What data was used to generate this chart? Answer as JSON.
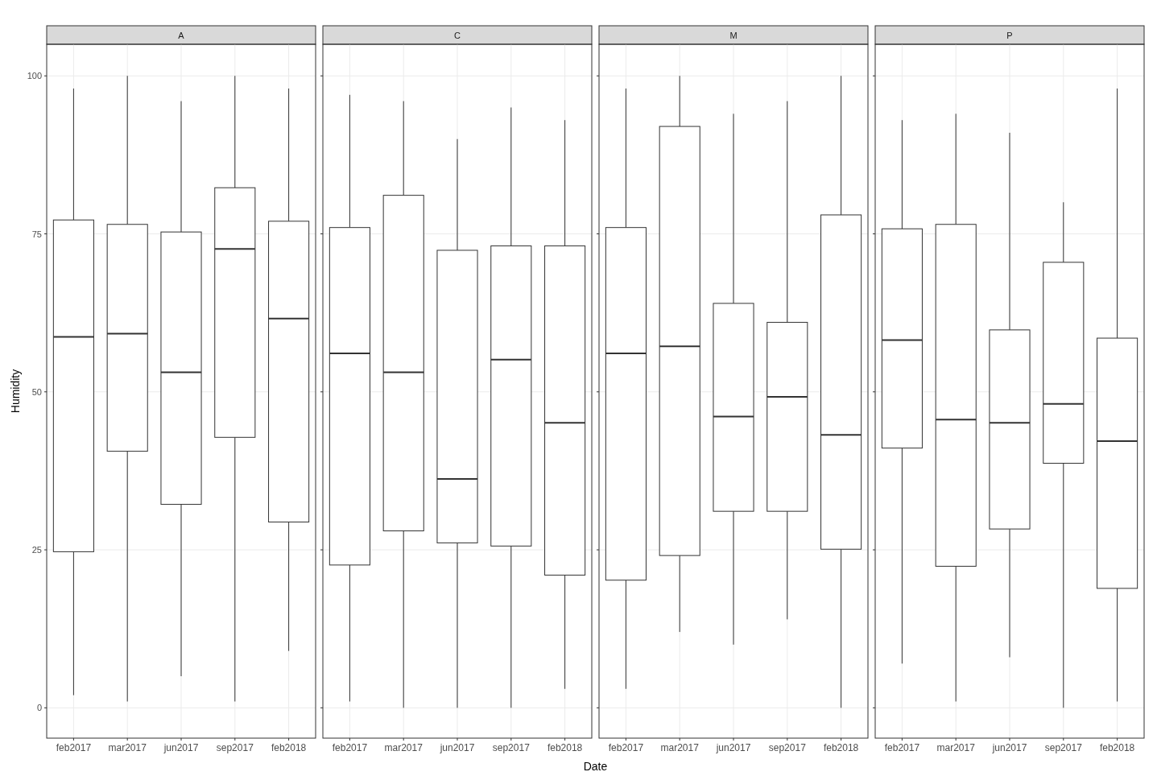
{
  "chart_data": [
    {
      "type": "box",
      "title": "A",
      "ylabel": "Humidity",
      "categories": [
        "feb2017",
        "mar2017",
        "jun2017",
        "sep2017",
        "feb2018"
      ],
      "ylim": [
        -4.8,
        105
      ],
      "yticks": [
        0,
        25,
        50,
        75,
        100
      ],
      "grid": true,
      "boxes": [
        {
          "low": 2,
          "q1": 24.7,
          "median": 58.7,
          "q3": 77.2,
          "high": 98
        },
        {
          "low": 1,
          "q1": 40.6,
          "median": 59.2,
          "q3": 76.5,
          "high": 100
        },
        {
          "low": 5,
          "q1": 32.2,
          "median": 53.1,
          "q3": 75.3,
          "high": 96
        },
        {
          "low": 1,
          "q1": 42.8,
          "median": 72.6,
          "q3": 82.3,
          "high": 100
        },
        {
          "low": 9,
          "q1": 29.4,
          "median": 61.6,
          "q3": 77,
          "high": 98
        }
      ]
    },
    {
      "type": "box",
      "title": "C",
      "xlabel": "Date",
      "categories": [
        "feb2017",
        "mar2017",
        "jun2017",
        "sep2017",
        "feb2018"
      ],
      "ylim": [
        -4.8,
        105
      ],
      "yticks": [
        0,
        25,
        50,
        75,
        100
      ],
      "grid": true,
      "tick_labels": "x",
      "boxes": [
        {
          "low": 1,
          "q1": 22.6,
          "median": 56.1,
          "q3": 76,
          "high": 97
        },
        {
          "low": 0,
          "q1": 28,
          "median": 53.1,
          "q3": 81.1,
          "high": 96
        },
        {
          "low": 0,
          "q1": 26.1,
          "median": 36.2,
          "q3": 72.4,
          "high": 90
        },
        {
          "low": 0,
          "q1": 25.6,
          "median": 55.1,
          "q3": 73.1,
          "high": 95
        },
        {
          "low": 3,
          "q1": 21,
          "median": 45.1,
          "q3": 73.1,
          "high": 93
        }
      ]
    },
    {
      "type": "box",
      "title": "M",
      "categories": [
        "feb2017",
        "mar2017",
        "jun2017",
        "sep2017",
        "feb2018"
      ],
      "ylim": [
        -4.8,
        105
      ],
      "yticks": [
        0,
        25,
        50,
        75,
        100
      ],
      "grid": true,
      "tick_labels": "x",
      "boxes": [
        {
          "low": 3,
          "q1": 20.2,
          "median": 56.1,
          "q3": 76,
          "high": 98
        },
        {
          "low": 12,
          "q1": 24.1,
          "median": 57.2,
          "q3": 92,
          "high": 100
        },
        {
          "low": 10,
          "q1": 31.1,
          "median": 46.1,
          "q3": 64,
          "high": 94
        },
        {
          "low": 14,
          "q1": 31.1,
          "median": 49.2,
          "q3": 61,
          "high": 96
        },
        {
          "low": 0,
          "q1": 25.1,
          "median": 43.2,
          "q3": 78,
          "high": 100
        }
      ]
    },
    {
      "type": "box",
      "title": "P",
      "categories": [
        "feb2017",
        "mar2017",
        "jun2017",
        "sep2017",
        "feb2018"
      ],
      "ylim": [
        -4.8,
        105
      ],
      "yticks": [
        0,
        25,
        50,
        75,
        100
      ],
      "grid": true,
      "tick_labels": "x",
      "boxes": [
        {
          "low": 7,
          "q1": 41.1,
          "median": 58.2,
          "q3": 75.8,
          "high": 93
        },
        {
          "low": 1,
          "q1": 22.4,
          "median": 45.6,
          "q3": 76.5,
          "high": 94
        },
        {
          "low": 8,
          "q1": 28.3,
          "median": 45.1,
          "q3": 59.8,
          "high": 91
        },
        {
          "low": 0,
          "q1": 38.7,
          "median": 48.1,
          "q3": 70.5,
          "high": 80
        },
        {
          "low": 1,
          "q1": 18.9,
          "median": 42.2,
          "q3": 58.5,
          "high": 98
        }
      ]
    }
  ]
}
